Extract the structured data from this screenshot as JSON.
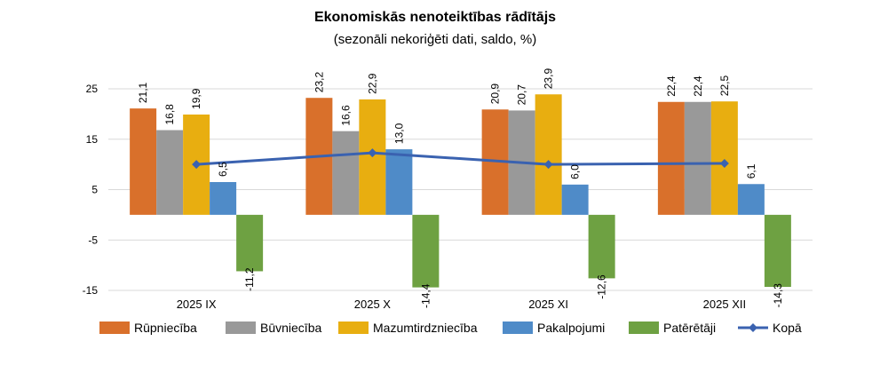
{
  "chart_data": {
    "type": "bar",
    "title": "Ekonomiskās nenoteiktības rādītājs",
    "subtitle": "(sezonāli nekoriģēti dati, saldo, %)",
    "categories": [
      "2025 IX",
      "2025 X",
      "2025 XI",
      "2025 XII"
    ],
    "ylim": [
      -15,
      25
    ],
    "yticks": [
      25,
      15,
      5,
      -5,
      -15
    ],
    "grid": true,
    "legend_position": "bottom",
    "series": [
      {
        "name": "Rūpniecība",
        "color": "#D9702B",
        "values": [
          21.1,
          23.2,
          20.9,
          22.4
        ],
        "labels": [
          "21,1",
          "23,2",
          "20,9",
          "22,4"
        ]
      },
      {
        "name": "Būvniecība",
        "color": "#999999",
        "values": [
          16.8,
          16.6,
          20.7,
          22.4
        ],
        "labels": [
          "16,8",
          "16,6",
          "20,7",
          "22,4"
        ]
      },
      {
        "name": "Mazumtirdzniecība",
        "color": "#E8AE10",
        "values": [
          19.9,
          22.9,
          23.9,
          22.5
        ],
        "labels": [
          "19,9",
          "22,9",
          "23,9",
          "22,5"
        ]
      },
      {
        "name": "Pakalpojumi",
        "color": "#4F8BC8",
        "values": [
          6.5,
          13.0,
          6.0,
          6.1
        ],
        "labels": [
          "6,5",
          "13,0",
          "6,0",
          "6,1"
        ]
      },
      {
        "name": "Patērētāji",
        "color": "#6EA142",
        "values": [
          -11.2,
          -14.4,
          -12.6,
          -14.3
        ],
        "labels": [
          "-11,2",
          "-14,4",
          "-12,6",
          "-14,3"
        ]
      }
    ],
    "line_series": {
      "name": "Kopā",
      "color": "#3A62B0",
      "values": [
        10.0,
        12.3,
        10.0,
        10.2
      ]
    }
  }
}
